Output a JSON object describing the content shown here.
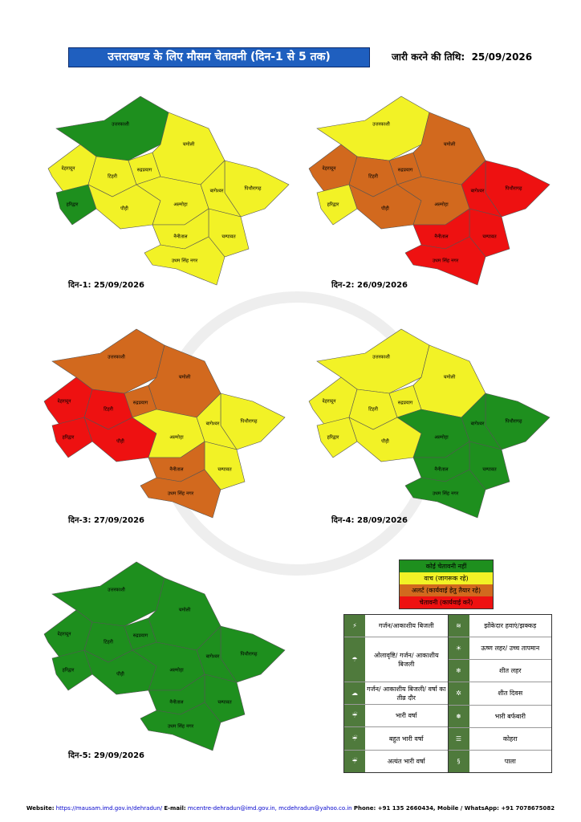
{
  "header": {
    "title": "उत्तराखण्ड के लिए मौसम चेतावनी (दिन-1 से 5 तक)",
    "issue_label": "जारी करने की तिथि:",
    "issue_date": "25/09/2026"
  },
  "districts": [
    "उत्तरकाशी",
    "देहरादून",
    "टिहरी",
    "हरिद्वार",
    "पौड़ी",
    "रुद्रप्रयाग",
    "चमोली",
    "पिथौरागढ़",
    "बागेश्वर",
    "अल्मोड़ा",
    "चम्पावत",
    "नैनीताल",
    "उधम सिंह नगर"
  ],
  "maps": [
    {
      "caption": "दिन-1: 25/09/2026",
      "levels": [
        0,
        1,
        1,
        0,
        1,
        1,
        1,
        1,
        1,
        1,
        1,
        1,
        1
      ]
    },
    {
      "caption": "दिन-2: 26/09/2026",
      "levels": [
        1,
        2,
        2,
        1,
        2,
        2,
        2,
        3,
        3,
        2,
        3,
        3,
        3
      ]
    },
    {
      "caption": "दिन-3: 27/09/2026",
      "levels": [
        2,
        3,
        3,
        3,
        3,
        2,
        2,
        1,
        1,
        1,
        1,
        2,
        2
      ]
    },
    {
      "caption": "दिन-4: 28/09/2026",
      "levels": [
        1,
        1,
        1,
        1,
        1,
        1,
        1,
        0,
        0,
        0,
        0,
        0,
        0
      ]
    },
    {
      "caption": "दिन-5: 29/09/2026",
      "levels": [
        0,
        0,
        0,
        0,
        0,
        0,
        0,
        0,
        0,
        0,
        0,
        0,
        0
      ]
    }
  ],
  "legend": [
    {
      "label": "कोई चेतावनी नहीं",
      "color": "#1e8f1e"
    },
    {
      "label": "वाच (जागरूक रहे)",
      "color": "#f2f226"
    },
    {
      "label": "अलर्ट (कार्यवाई हेतु तैयार रहे)",
      "color": "#d2691e"
    },
    {
      "label": "चेतावनी (कार्यवाई करें)",
      "color": "#ee1111"
    }
  ],
  "icon_legend": {
    "left": [
      "गर्जन/आकाशीय बिजली",
      "ओलावृष्टि/ गर्जन/ आकाशीय बिजली",
      "गर्जन/ आकाशीय बिजली/ वर्षा का तीव्र दौर",
      "भारी वर्षा",
      "बहुत भारी वर्षा",
      "अत्यंत भारी वर्षा"
    ],
    "right": [
      "झोंकेदार हवाएं/झक्कड़",
      "ऊष्ण लहर/ उच्च तापमान",
      "शीत लहर",
      "शीत दिवस",
      "भारी बर्फबारी",
      "कोहरा",
      "पाला"
    ]
  },
  "footer": {
    "website_label": "Website:",
    "website": "https://mausam.imd.gov.in/dehradun/",
    "email_label": "E-mail:",
    "email1": "mcentre-dehradun@imd.gov.in,",
    "email2": "mcdehradun@yahoo.co.in",
    "phone": "Phone: +91 135 2660434, Mobile / WhatsApp: +91 7078675082"
  }
}
